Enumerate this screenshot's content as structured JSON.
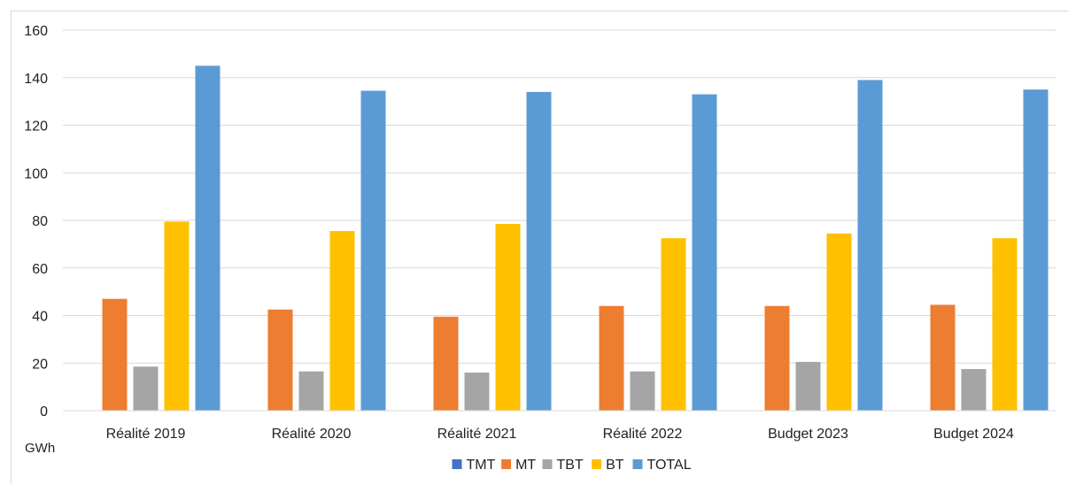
{
  "chart_data": {
    "type": "bar",
    "title": "",
    "xlabel": "",
    "ylabel": "",
    "unit_label": "GWh",
    "categories": [
      "Réalité 2019",
      "Réalité 2020",
      "Réalité 2021",
      "Réalité 2022",
      "Budget 2023",
      "Budget 2024"
    ],
    "series": [
      {
        "name": "TMT",
        "color": "#4472c4",
        "values": [
          0,
          0,
          0,
          0,
          0,
          0
        ]
      },
      {
        "name": "MT",
        "color": "#ed7d31",
        "values": [
          47,
          42.5,
          39.5,
          44,
          44,
          44.5
        ]
      },
      {
        "name": "TBT",
        "color": "#a5a5a5",
        "values": [
          18.5,
          16.5,
          16,
          16.5,
          20.5,
          17.5
        ]
      },
      {
        "name": "BT",
        "color": "#ffc000",
        "values": [
          79.5,
          75.5,
          78.5,
          72.5,
          74.5,
          72.5
        ]
      },
      {
        "name": "TOTAL",
        "color": "#5b9bd5",
        "values": [
          145,
          134.5,
          134,
          133,
          139,
          135
        ]
      }
    ],
    "ylim": [
      0,
      160
    ],
    "yticks": [
      0,
      20,
      40,
      60,
      80,
      100,
      120,
      140,
      160
    ],
    "grid": true,
    "legend_position": "bottom"
  }
}
